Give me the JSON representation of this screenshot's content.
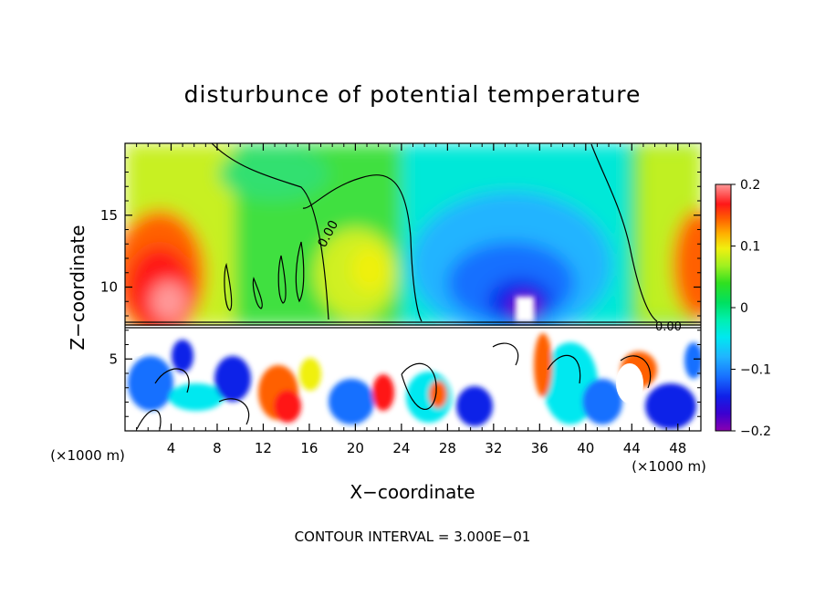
{
  "chart_data": {
    "type": "heatmap",
    "title": "disturbunce of potential temperature",
    "xlabel": "X−coordinate",
    "ylabel": "Z−coordinate",
    "x_unit_label": "(×1000 m)",
    "x_unit_label_right": "(×1000 m)",
    "xlim": [
      0,
      50
    ],
    "ylim": [
      0,
      20
    ],
    "x_ticks": [
      "4",
      "8",
      "12",
      "16",
      "20",
      "24",
      "28",
      "32",
      "36",
      "40",
      "44",
      "48"
    ],
    "x_tick_values": [
      4,
      8,
      12,
      16,
      20,
      24,
      28,
      32,
      36,
      40,
      44,
      48
    ],
    "y_ticks": [
      "5",
      "10",
      "15"
    ],
    "y_tick_values": [
      5,
      10,
      15
    ],
    "colorbar": {
      "range": [
        -0.2,
        0.2
      ],
      "tick_labels": [
        "0.2",
        "0.1",
        "0",
        "−0.1",
        "−0.2"
      ],
      "tick_values": [
        0.2,
        0.1,
        0,
        -0.1,
        -0.2
      ],
      "colors": [
        "#8a00b0",
        "#3b00d0",
        "#1020e8",
        "#1870ff",
        "#20b4ff",
        "#00e8f0",
        "#00f0b0",
        "#00e060",
        "#30e020",
        "#a0f020",
        "#f0f010",
        "#ffb000",
        "#ff6000",
        "#ff1818",
        "#ff9898"
      ]
    },
    "contour_labels": [
      "0.00",
      "0.00"
    ],
    "boundary_z": 7.5,
    "footer": "CONTOUR INTERVAL = 3.000E−01"
  }
}
